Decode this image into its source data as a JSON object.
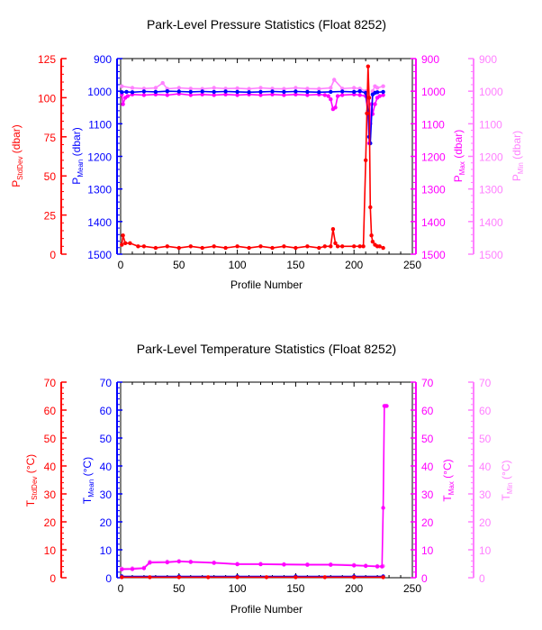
{
  "chart_data": [
    {
      "type": "line",
      "title": "Park-Level Pressure Statistics (Float 8252)",
      "xlabel": "Profile Number",
      "xlim": [
        0,
        250
      ],
      "xticks": [
        "0",
        "50",
        "100",
        "150",
        "200",
        "250"
      ],
      "axes": [
        {
          "id": "stddev",
          "label_main": "P",
          "label_sub": "StdDev",
          "label_unit": " (dbar)",
          "color": "#ff0000",
          "ylim": [
            0,
            125
          ],
          "ticks": [
            "0",
            "25",
            "50",
            "75",
            "100",
            "125"
          ],
          "inverted": false
        },
        {
          "id": "mean",
          "label_main": "P",
          "label_sub": "Mean",
          "label_unit": " (dbar)",
          "color": "#0000ff",
          "ylim": [
            900,
            1500
          ],
          "ticks": [
            "900",
            "1000",
            "1100",
            "1200",
            "1300",
            "1400",
            "1500"
          ],
          "inverted": true
        },
        {
          "id": "max",
          "label_main": "P",
          "label_sub": "Max",
          "label_unit": " (dbar)",
          "color": "#ff00ff",
          "ylim": [
            900,
            1500
          ],
          "ticks": [
            "900",
            "1000",
            "1100",
            "1200",
            "1300",
            "1400",
            "1500"
          ],
          "inverted": true
        },
        {
          "id": "min",
          "label_main": "P",
          "label_sub": "Min",
          "label_unit": " (dbar)",
          "color": "#ff80ff",
          "ylim": [
            900,
            1500
          ],
          "ticks": [
            "900",
            "1000",
            "1100",
            "1200",
            "1300",
            "1400",
            "1500"
          ],
          "inverted": true
        }
      ],
      "series": [
        {
          "axis": "min",
          "color": "#ff80ff",
          "x": [
            1,
            10,
            20,
            30,
            36,
            40,
            50,
            60,
            70,
            80,
            90,
            100,
            110,
            120,
            130,
            140,
            150,
            160,
            170,
            180,
            183,
            190,
            200,
            205,
            210,
            212,
            214,
            216,
            218,
            220,
            225
          ],
          "y": [
            985,
            990,
            992,
            990,
            975,
            993,
            990,
            992,
            993,
            990,
            992,
            991,
            993,
            990,
            992,
            993,
            990,
            992,
            993,
            990,
            965,
            992,
            990,
            992,
            1000,
            1025,
            1100,
            1000,
            985,
            990,
            985
          ]
        },
        {
          "axis": "max",
          "color": "#ff00ff",
          "x": [
            1,
            2,
            4,
            6,
            10,
            20,
            30,
            40,
            50,
            60,
            70,
            80,
            90,
            100,
            110,
            120,
            130,
            140,
            150,
            160,
            170,
            175,
            178,
            180,
            182,
            184,
            186,
            190,
            200,
            205,
            210,
            212,
            213,
            214,
            215,
            216,
            218,
            220,
            222,
            225
          ],
          "y": [
            1010,
            1040,
            1020,
            1015,
            1010,
            1012,
            1010,
            1012,
            1008,
            1012,
            1010,
            1012,
            1010,
            1012,
            1010,
            1012,
            1010,
            1012,
            1010,
            1012,
            1010,
            1012,
            1015,
            1025,
            1055,
            1050,
            1015,
            1012,
            1010,
            1012,
            1015,
            1070,
            1160,
            1100,
            1040,
            1070,
            1040,
            1020,
            1015,
            1012
          ]
        },
        {
          "axis": "mean",
          "color": "#0000ff",
          "x": [
            1,
            5,
            10,
            20,
            30,
            40,
            50,
            60,
            70,
            80,
            90,
            100,
            110,
            120,
            130,
            140,
            150,
            160,
            170,
            180,
            190,
            200,
            205,
            210,
            212,
            213,
            214,
            216,
            218,
            220,
            225
          ],
          "y": [
            1003,
            1002,
            1003,
            1001,
            1002,
            1000,
            1001,
            1002,
            1001,
            1002,
            1001,
            1002,
            1003,
            1002,
            1001,
            1002,
            1001,
            1002,
            1003,
            1002,
            1001,
            1002,
            1000,
            1005,
            1060,
            1140,
            1160,
            1010,
            1005,
            1003,
            1002
          ]
        },
        {
          "axis": "stddev",
          "color": "#ff0000",
          "x": [
            1,
            2,
            4,
            8,
            15,
            20,
            30,
            40,
            50,
            60,
            70,
            80,
            90,
            100,
            110,
            120,
            130,
            140,
            150,
            160,
            170,
            175,
            180,
            182,
            184,
            186,
            190,
            200,
            205,
            208,
            210,
            211,
            212,
            213,
            214,
            215,
            216,
            218,
            220,
            222,
            225
          ],
          "y": [
            6,
            12,
            7,
            7,
            5,
            5,
            4,
            5,
            4,
            5,
            4,
            5,
            4,
            5,
            4,
            5,
            4,
            5,
            4,
            5,
            4,
            5,
            5,
            16,
            7,
            5,
            5,
            5,
            5,
            5,
            60,
            90,
            120,
            100,
            30,
            12,
            8,
            6,
            5,
            5,
            4
          ]
        }
      ]
    },
    {
      "type": "line",
      "title": "Park-Level Temperature Statistics (Float 8252)",
      "xlabel": "Profile Number",
      "xlim": [
        0,
        250
      ],
      "xticks": [
        "0",
        "50",
        "100",
        "150",
        "200",
        "250"
      ],
      "axes": [
        {
          "id": "stddev",
          "label_main": "T",
          "label_sub": "StdDev",
          "label_unit": " (°C)",
          "color": "#ff0000",
          "ylim": [
            0,
            70
          ],
          "ticks": [
            "0",
            "10",
            "20",
            "30",
            "40",
            "50",
            "60",
            "70"
          ],
          "inverted": false
        },
        {
          "id": "mean",
          "label_main": "T",
          "label_sub": "Mean",
          "label_unit": " (°C)",
          "color": "#0000ff",
          "ylim": [
            0,
            70
          ],
          "ticks": [
            "0",
            "10",
            "20",
            "30",
            "40",
            "50",
            "60",
            "70"
          ],
          "inverted": false
        },
        {
          "id": "max",
          "label_main": "T",
          "label_sub": "Max",
          "label_unit": " (°C)",
          "color": "#ff00ff",
          "ylim": [
            0,
            70
          ],
          "ticks": [
            "0",
            "10",
            "20",
            "30",
            "40",
            "50",
            "60",
            "70"
          ],
          "inverted": false
        },
        {
          "id": "min",
          "label_main": "T",
          "label_sub": "Min",
          "label_unit": " (°C)",
          "color": "#ff80ff",
          "ylim": [
            0,
            70
          ],
          "ticks": [
            "0",
            "10",
            "20",
            "30",
            "40",
            "50",
            "60",
            "70"
          ],
          "inverted": false
        }
      ],
      "series": [
        {
          "axis": "min",
          "color": "#ff80ff",
          "x": [
            1,
            10,
            20,
            25,
            40,
            50,
            60,
            80,
            100,
            120,
            140,
            160,
            180,
            200,
            210,
            220,
            225
          ],
          "y": [
            3.3,
            3.4,
            3.6,
            5.7,
            5.8,
            6.0,
            5.8,
            5.5,
            5.0,
            5.0,
            4.9,
            4.8,
            4.8,
            4.6,
            4.4,
            4.2,
            4.2
          ]
        },
        {
          "axis": "max",
          "color": "#ff00ff",
          "x": [
            1,
            10,
            20,
            25,
            40,
            50,
            60,
            80,
            100,
            120,
            140,
            160,
            180,
            200,
            210,
            220,
            224,
            225,
            226,
            227,
            228
          ],
          "y": [
            3.0,
            3.1,
            3.4,
            5.4,
            5.5,
            5.8,
            5.6,
            5.3,
            4.8,
            4.8,
            4.7,
            4.6,
            4.6,
            4.4,
            4.2,
            4.0,
            4.0,
            25,
            61.5,
            61.5,
            61.5
          ]
        },
        {
          "axis": "mean",
          "color": "#0000ff",
          "x": [
            1,
            50,
            100,
            150,
            200,
            225
          ],
          "y": [
            0.5,
            0.5,
            0.5,
            0.5,
            0.5,
            0.5
          ]
        },
        {
          "axis": "stddev",
          "color": "#ff0000",
          "x": [
            1,
            25,
            50,
            75,
            100,
            125,
            150,
            175,
            200,
            225
          ],
          "y": [
            0.2,
            0.2,
            0.2,
            0.2,
            0.2,
            0.2,
            0.2,
            0.2,
            0.2,
            0.2
          ]
        }
      ]
    }
  ]
}
